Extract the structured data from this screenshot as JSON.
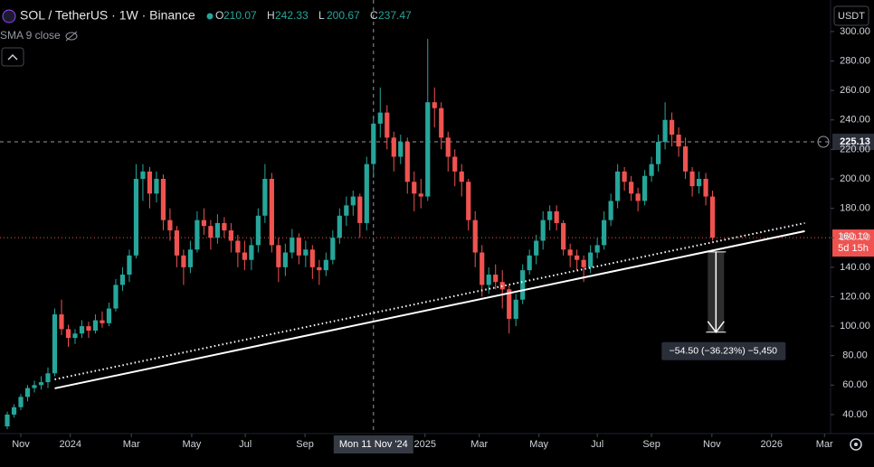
{
  "chart_data": {
    "type": "candlestick",
    "title": "SOL / TetherUS · 1W · Binance",
    "legend_fields": [
      "O",
      "H",
      "L",
      "C"
    ],
    "legend_candle": 54,
    "indicator": "SMA 9 close",
    "currency": "USDT",
    "up_color": "#26a69a",
    "down_color": "#ef5350",
    "xlim": [
      -1.07,
      121
    ],
    "ylim": [
      27.1,
      321.4
    ],
    "yticks": [
      {
        "value": 40,
        "label": "40.00"
      },
      {
        "value": 60,
        "label": "60.00"
      },
      {
        "value": 80,
        "label": "80.00"
      },
      {
        "value": 100,
        "label": "100.00"
      },
      {
        "value": 120,
        "label": "120.00"
      },
      {
        "value": 140,
        "label": "140.00"
      },
      {
        "value": 160,
        "label": "160.00"
      },
      {
        "value": 180,
        "label": "180.00"
      },
      {
        "value": 200,
        "label": "200.00"
      },
      {
        "value": 220,
        "label": "220.00"
      },
      {
        "value": 240,
        "label": "240.00"
      },
      {
        "value": 260,
        "label": "260.00"
      },
      {
        "value": 280,
        "label": "280.00"
      },
      {
        "value": 300,
        "label": "300.00"
      }
    ],
    "xticks": [
      {
        "value": 2,
        "label": "Nov"
      },
      {
        "value": 9.3,
        "label": "2024"
      },
      {
        "value": 18.3,
        "label": "Mar"
      },
      {
        "value": 27.2,
        "label": "May"
      },
      {
        "value": 35.1,
        "label": "Jul"
      },
      {
        "value": 43.9,
        "label": "Sep"
      },
      {
        "value": 61.6,
        "label": "2025"
      },
      {
        "value": 69.6,
        "label": "Mar"
      },
      {
        "value": 78.4,
        "label": "May"
      },
      {
        "value": 87,
        "label": "Jul"
      },
      {
        "value": 95,
        "label": "Sep"
      },
      {
        "value": 103.9,
        "label": "Nov"
      },
      {
        "value": 112.7,
        "label": "2026"
      },
      {
        "value": 120.5,
        "label": "Mar"
      }
    ],
    "crosshair": {
      "value": 54,
      "label": "Mon 11 Nov '24"
    },
    "price_line": 225.13,
    "last_price": {
      "value": 160.1,
      "label": "160.10"
    },
    "countdown": "5d 15h",
    "candles": [
      [
        32,
        42,
        30,
        40
      ],
      [
        40,
        47,
        38,
        45
      ],
      [
        45,
        54,
        43,
        52
      ],
      [
        52,
        60,
        49,
        58
      ],
      [
        58,
        63,
        55,
        60
      ],
      [
        60,
        66,
        57,
        62
      ],
      [
        62,
        72,
        58,
        68
      ],
      [
        68,
        112,
        66,
        108
      ],
      [
        108,
        118,
        94,
        98
      ],
      [
        98,
        101,
        86,
        92
      ],
      [
        92,
        98,
        88,
        95
      ],
      [
        95,
        104,
        92,
        100
      ],
      [
        100,
        103,
        92,
        97
      ],
      [
        97,
        108,
        95,
        104
      ],
      [
        104,
        110,
        99,
        102
      ],
      [
        102,
        116,
        100,
        112
      ],
      [
        112,
        132,
        110,
        128
      ],
      [
        128,
        140,
        124,
        135
      ],
      [
        135,
        152,
        130,
        148
      ],
      [
        148,
        210,
        146,
        200
      ],
      [
        200,
        210,
        185,
        205
      ],
      [
        205,
        208,
        180,
        190
      ],
      [
        190,
        205,
        184,
        200
      ],
      [
        200,
        203,
        165,
        172
      ],
      [
        172,
        180,
        158,
        165
      ],
      [
        165,
        168,
        140,
        148
      ],
      [
        148,
        152,
        128,
        140
      ],
      [
        140,
        158,
        136,
        152
      ],
      [
        152,
        178,
        150,
        172
      ],
      [
        172,
        180,
        162,
        168
      ],
      [
        168,
        172,
        152,
        160
      ],
      [
        160,
        176,
        156,
        170
      ],
      [
        170,
        174,
        160,
        165
      ],
      [
        165,
        170,
        150,
        158
      ],
      [
        158,
        162,
        140,
        150
      ],
      [
        150,
        158,
        138,
        145
      ],
      [
        145,
        160,
        138,
        155
      ],
      [
        155,
        180,
        150,
        175
      ],
      [
        175,
        210,
        170,
        200
      ],
      [
        200,
        204,
        150,
        155
      ],
      [
        155,
        160,
        130,
        140
      ],
      [
        140,
        156,
        134,
        150
      ],
      [
        150,
        166,
        146,
        160
      ],
      [
        160,
        163,
        142,
        148
      ],
      [
        148,
        158,
        140,
        152
      ],
      [
        152,
        155,
        132,
        140
      ],
      [
        140,
        145,
        128,
        138
      ],
      [
        138,
        150,
        134,
        145
      ],
      [
        145,
        165,
        142,
        160
      ],
      [
        160,
        180,
        156,
        175
      ],
      [
        175,
        188,
        168,
        182
      ],
      [
        182,
        192,
        175,
        188
      ],
      [
        188,
        190,
        160,
        170
      ],
      [
        170,
        215,
        165,
        210
      ],
      [
        210.07,
        242.33,
        200.67,
        237.47
      ],
      [
        237.47,
        262,
        228,
        245
      ],
      [
        245,
        250,
        220,
        228
      ],
      [
        228,
        232,
        205,
        215
      ],
      [
        215,
        230,
        210,
        225
      ],
      [
        225,
        228,
        190,
        198
      ],
      [
        198,
        205,
        178,
        190
      ],
      [
        190,
        200,
        180,
        188
      ],
      [
        188,
        295,
        185,
        252
      ],
      [
        252,
        262,
        235,
        248
      ],
      [
        248,
        252,
        220,
        228
      ],
      [
        228,
        232,
        205,
        215
      ],
      [
        215,
        220,
        195,
        205
      ],
      [
        205,
        210,
        188,
        198
      ],
      [
        198,
        200,
        165,
        172
      ],
      [
        172,
        178,
        140,
        150
      ],
      [
        150,
        155,
        120,
        128
      ],
      [
        128,
        140,
        122,
        135
      ],
      [
        135,
        142,
        125,
        130
      ],
      [
        130,
        138,
        112,
        125
      ],
      [
        125,
        128,
        95,
        105
      ],
      [
        105,
        122,
        100,
        118
      ],
      [
        118,
        142,
        115,
        138
      ],
      [
        138,
        152,
        135,
        148
      ],
      [
        148,
        162,
        142,
        158
      ],
      [
        158,
        178,
        152,
        172
      ],
      [
        172,
        182,
        165,
        178
      ],
      [
        178,
        182,
        165,
        170
      ],
      [
        170,
        172,
        148,
        152
      ],
      [
        152,
        156,
        140,
        148
      ],
      [
        148,
        152,
        138,
        145
      ],
      [
        145,
        148,
        130,
        140
      ],
      [
        140,
        155,
        136,
        150
      ],
      [
        150,
        160,
        146,
        155
      ],
      [
        155,
        178,
        152,
        172
      ],
      [
        172,
        190,
        168,
        185
      ],
      [
        185,
        210,
        180,
        205
      ],
      [
        205,
        208,
        192,
        198
      ],
      [
        198,
        202,
        185,
        190
      ],
      [
        190,
        194,
        178,
        185
      ],
      [
        185,
        206,
        182,
        202
      ],
      [
        202,
        215,
        198,
        210
      ],
      [
        210,
        230,
        205,
        225
      ],
      [
        225,
        252,
        220,
        240
      ],
      [
        240,
        245,
        222,
        230
      ],
      [
        230,
        235,
        215,
        222
      ],
      [
        222,
        228,
        200,
        205
      ],
      [
        205,
        208,
        188,
        195
      ],
      [
        195,
        205,
        190,
        200
      ],
      [
        200,
        204,
        182,
        188
      ],
      [
        188,
        192,
        158,
        160.1
      ]
    ],
    "trendlines": [
      {
        "x": [
          7,
          117.6
        ],
        "y": [
          57.8,
          164.5
        ],
        "style": "solid"
      },
      {
        "x": [
          7,
          117.6
        ],
        "y": [
          63.9,
          170
        ],
        "style": "dotted"
      }
    ],
    "measure": {
      "x": 104.5,
      "from": 150.4,
      "to": 95.9,
      "label": "−54.50 (−36.23%) −5,450"
    }
  }
}
